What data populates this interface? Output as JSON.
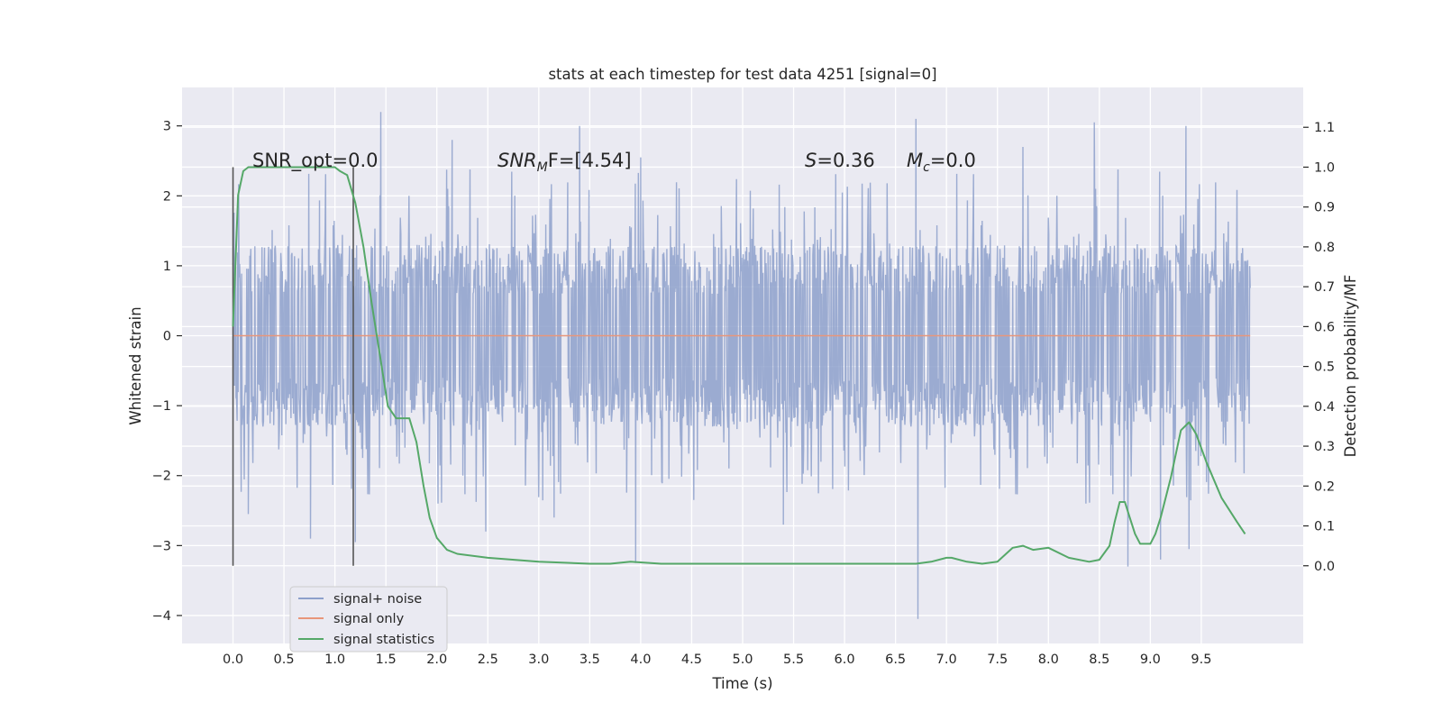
{
  "chart_data": {
    "type": "line",
    "title": "stats at each timestep for test data 4251 [signal=0]",
    "xlabel": "Time (s)",
    "ylabel": "Whitened strain",
    "y2label": "Detection probability/MF",
    "xlim": [
      -0.5,
      10.5
    ],
    "ylim": [
      -4.4,
      3.55
    ],
    "y2lim": [
      -0.195,
      1.2
    ],
    "xticks": [
      0.0,
      0.5,
      1.0,
      1.5,
      2.0,
      2.5,
      3.0,
      3.5,
      4.0,
      4.5,
      5.0,
      5.5,
      6.0,
      6.5,
      7.0,
      7.5,
      8.0,
      8.5,
      9.0,
      9.5
    ],
    "xtick_labels": [
      "0.0",
      "0.5",
      "1.0",
      "1.5",
      "2.0",
      "2.5",
      "3.0",
      "3.5",
      "4.0",
      "4.5",
      "5.0",
      "5.5",
      "6.0",
      "6.5",
      "7.0",
      "7.5",
      "8.0",
      "8.5",
      "9.0",
      "9.5"
    ],
    "yticks": [
      3,
      2,
      1,
      0,
      -1,
      -2,
      -3,
      -4
    ],
    "ytick_labels": [
      "3",
      "2",
      "1",
      "0",
      "−1",
      "−2",
      "−3",
      "−4"
    ],
    "y2ticks": [
      1.1,
      1.0,
      0.9,
      0.8,
      0.7,
      0.6,
      0.5,
      0.4,
      0.3,
      0.2,
      0.1,
      0.0
    ],
    "y2tick_labels": [
      "1.1",
      "1.0",
      "0.9",
      "0.8",
      "0.7",
      "0.6",
      "0.5",
      "0.4",
      "0.3",
      "0.2",
      "0.1",
      "0.0"
    ],
    "grid": true,
    "legend_position": "lower-left",
    "series": [
      {
        "name": "signal+ noise",
        "axis": "left",
        "color": "#8da0cb",
        "noise_envelope": {
          "x_range": [
            0.0,
            9.98
          ],
          "typical_amplitude": 1.3,
          "outliers": [
            {
              "x": 1.45,
              "y": 3.2
            },
            {
              "x": 3.4,
              "y": 3.0
            },
            {
              "x": 6.7,
              "y": 3.1
            },
            {
              "x": 8.45,
              "y": 3.05
            },
            {
              "x": 9.35,
              "y": 3.0
            },
            {
              "x": 4.0,
              "y": 2.55
            },
            {
              "x": 2.15,
              "y": 2.8
            },
            {
              "x": 7.75,
              "y": 2.7
            },
            {
              "x": 0.15,
              "y": -2.55
            },
            {
              "x": 0.76,
              "y": -2.9
            },
            {
              "x": 1.2,
              "y": -2.95
            },
            {
              "x": 2.48,
              "y": -2.8
            },
            {
              "x": 3.95,
              "y": -3.25
            },
            {
              "x": 6.72,
              "y": -4.05
            },
            {
              "x": 8.78,
              "y": -3.3
            },
            {
              "x": 9.1,
              "y": -3.2
            },
            {
              "x": 9.38,
              "y": -3.05
            },
            {
              "x": 5.4,
              "y": -2.7
            },
            {
              "x": 3.15,
              "y": -2.6
            }
          ]
        }
      },
      {
        "name": "signal only",
        "axis": "left",
        "color": "#e8967a",
        "x": [
          0.0,
          9.98
        ],
        "y": [
          0.0,
          0.0
        ]
      },
      {
        "name": "signal statistics",
        "axis": "right",
        "color": "#55a868",
        "x": [
          0.0,
          0.05,
          0.1,
          0.15,
          0.25,
          0.4,
          0.6,
          0.8,
          1.0,
          1.05,
          1.12,
          1.2,
          1.28,
          1.36,
          1.44,
          1.52,
          1.6,
          1.67,
          1.73,
          1.8,
          1.87,
          1.93,
          2.0,
          2.1,
          2.2,
          2.5,
          3.0,
          3.5,
          3.7,
          3.9,
          4.2,
          5.0,
          5.5,
          6.0,
          6.7,
          6.85,
          7.0,
          7.05,
          7.2,
          7.35,
          7.5,
          7.65,
          7.75,
          7.85,
          8.0,
          8.2,
          8.4,
          8.5,
          8.6,
          8.65,
          8.7,
          8.75,
          8.8,
          8.85,
          8.9,
          9.0,
          9.05,
          9.1,
          9.2,
          9.3,
          9.38,
          9.45,
          9.55,
          9.7,
          9.85,
          9.93
        ],
        "y": [
          0.6,
          0.93,
          0.99,
          1.0,
          1.0,
          1.0,
          1.0,
          1.0,
          1.0,
          0.99,
          0.98,
          0.91,
          0.8,
          0.66,
          0.53,
          0.4,
          0.37,
          0.37,
          0.37,
          0.31,
          0.2,
          0.12,
          0.07,
          0.04,
          0.03,
          0.02,
          0.01,
          0.005,
          0.005,
          0.01,
          0.005,
          0.005,
          0.005,
          0.005,
          0.005,
          0.01,
          0.02,
          0.02,
          0.01,
          0.005,
          0.01,
          0.045,
          0.05,
          0.04,
          0.045,
          0.02,
          0.01,
          0.015,
          0.05,
          0.11,
          0.16,
          0.16,
          0.12,
          0.08,
          0.055,
          0.055,
          0.08,
          0.12,
          0.22,
          0.34,
          0.36,
          0.33,
          0.26,
          0.17,
          0.11,
          0.08
        ]
      }
    ],
    "vertical_markers": [
      0.0,
      1.18
    ],
    "annotations": [
      {
        "text": "SNR_opt=0.0"
      },
      {
        "base": "SNR",
        "sub": "M",
        "rest": "F=[4.54]"
      },
      {
        "base": "S",
        "rest": "=0.36"
      },
      {
        "base": "M",
        "sub": "c",
        "rest": "=0.0"
      }
    ]
  }
}
